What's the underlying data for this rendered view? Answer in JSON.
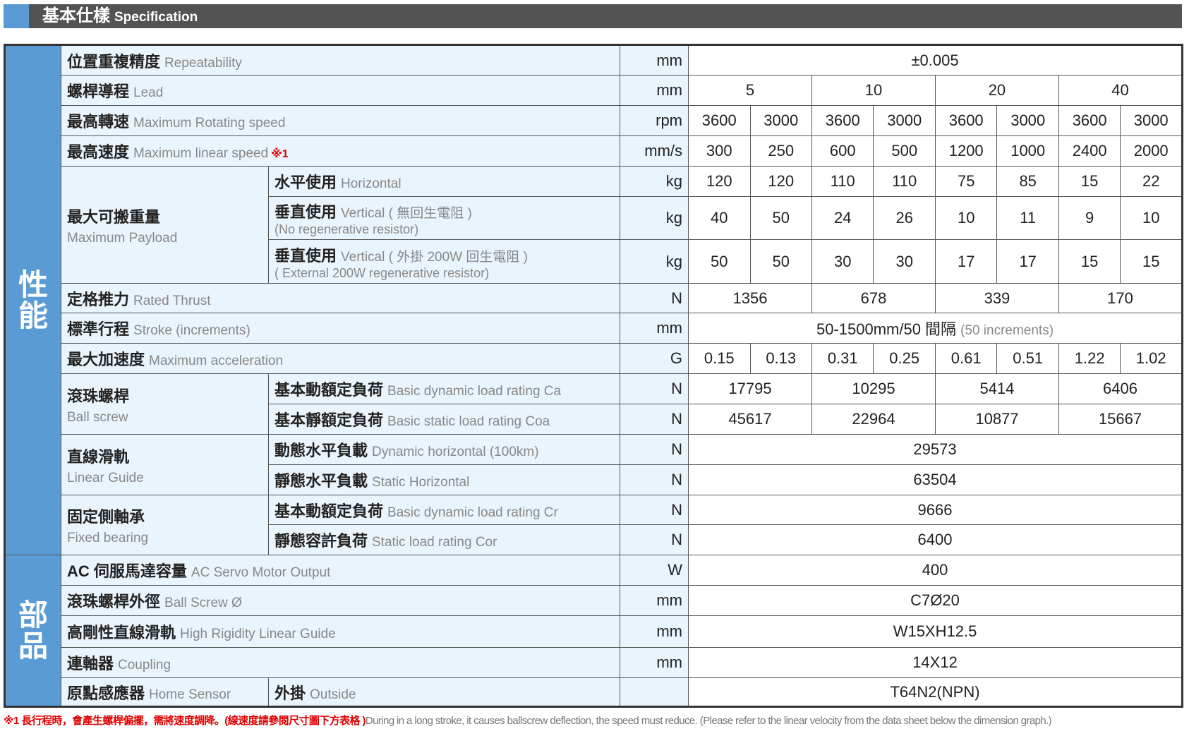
{
  "header": {
    "title_zh": "基本仕樣",
    "title_en": "Specification"
  },
  "colors": {
    "section_blue": "#5b9bd5",
    "label_bg": "#eaf4fc",
    "header_bg": "#545354",
    "note_red": "#e00000"
  },
  "sections": [
    {
      "label": "性能",
      "rows": 16
    },
    {
      "label": "部品",
      "rows": 5
    }
  ],
  "rows": [
    {
      "label_zh": "位置重複精度",
      "label_en": "Repeatability",
      "unit": "mm",
      "values": [
        {
          "v": "±0.005",
          "span": 8
        }
      ]
    },
    {
      "label_zh": "螺桿導程",
      "label_en": "Lead",
      "unit": "mm",
      "values": [
        {
          "v": "5",
          "span": 2
        },
        {
          "v": "10",
          "span": 2
        },
        {
          "v": "20",
          "span": 2
        },
        {
          "v": "40",
          "span": 2
        }
      ]
    },
    {
      "label_zh": "最高轉速",
      "label_en": "Maximum Rotating speed",
      "unit": "rpm",
      "values": [
        {
          "v": "3600"
        },
        {
          "v": "3000"
        },
        {
          "v": "3600"
        },
        {
          "v": "3000"
        },
        {
          "v": "3600"
        },
        {
          "v": "3000"
        },
        {
          "v": "3600"
        },
        {
          "v": "3000"
        }
      ]
    },
    {
      "label_zh": "最高速度",
      "label_en": "Maximum linear speed",
      "note": "※1",
      "unit": "mm/s",
      "values": [
        {
          "v": "300"
        },
        {
          "v": "250"
        },
        {
          "v": "600"
        },
        {
          "v": "500"
        },
        {
          "v": "1200"
        },
        {
          "v": "1000"
        },
        {
          "v": "2400"
        },
        {
          "v": "2000"
        }
      ]
    },
    {
      "label_zh": "最大可搬重量",
      "label_en": "Maximum Payload",
      "rowspan": 3,
      "sub_zh": "水平使用",
      "sub_en": "Horizontal",
      "unit": "kg",
      "values": [
        {
          "v": "120"
        },
        {
          "v": "120"
        },
        {
          "v": "110"
        },
        {
          "v": "110"
        },
        {
          "v": "75"
        },
        {
          "v": "85"
        },
        {
          "v": "15"
        },
        {
          "v": "22"
        }
      ]
    },
    {
      "sub_zh": "垂直使用",
      "sub_en": "Vertical ( 無回生電阻 )",
      "sub_en2": "(No regenerative resistor)",
      "unit": "kg",
      "values": [
        {
          "v": "40"
        },
        {
          "v": "50"
        },
        {
          "v": "24"
        },
        {
          "v": "26"
        },
        {
          "v": "10"
        },
        {
          "v": "11"
        },
        {
          "v": "9"
        },
        {
          "v": "10"
        }
      ]
    },
    {
      "sub_zh": "垂直使用",
      "sub_en": "Vertical ( 外掛 200W 回生電阻 )",
      "sub_en2": "( External 200W regenerative resistor)",
      "unit": "kg",
      "values": [
        {
          "v": "50"
        },
        {
          "v": "50"
        },
        {
          "v": "30"
        },
        {
          "v": "30"
        },
        {
          "v": "17"
        },
        {
          "v": "17"
        },
        {
          "v": "15"
        },
        {
          "v": "15"
        }
      ]
    },
    {
      "label_zh": "定格推力",
      "label_en": "Rated Thrust",
      "unit": "N",
      "values": [
        {
          "v": "1356",
          "span": 2
        },
        {
          "v": "678",
          "span": 2
        },
        {
          "v": "339",
          "span": 2
        },
        {
          "v": "170",
          "span": 2
        }
      ]
    },
    {
      "label_zh": "標準行程",
      "label_en": "Stroke (increments)",
      "unit": "mm",
      "values": [
        {
          "v": "50-1500mm/50 間隔",
          "extra": "(50 increments)",
          "span": 8
        }
      ]
    },
    {
      "label_zh": "最大加速度",
      "label_en": "Maximum acceleration",
      "unit": "G",
      "values": [
        {
          "v": "0.15"
        },
        {
          "v": "0.13"
        },
        {
          "v": "0.31"
        },
        {
          "v": "0.25"
        },
        {
          "v": "0.61"
        },
        {
          "v": "0.51"
        },
        {
          "v": "1.22"
        },
        {
          "v": "1.02"
        }
      ]
    },
    {
      "label_zh": "滾珠螺桿",
      "label_en": "Ball screw",
      "rowspan": 2,
      "sub_zh": "基本動額定負荷",
      "sub_en": "Basic dynamic load rating Ca",
      "unit": "N",
      "values": [
        {
          "v": "17795",
          "span": 2
        },
        {
          "v": "10295",
          "span": 2
        },
        {
          "v": "5414",
          "span": 2
        },
        {
          "v": "6406",
          "span": 2
        }
      ]
    },
    {
      "sub_zh": "基本靜額定負荷",
      "sub_en": "Basic static load rating Coa",
      "unit": "N",
      "values": [
        {
          "v": "45617",
          "span": 2
        },
        {
          "v": "22964",
          "span": 2
        },
        {
          "v": "10877",
          "span": 2
        },
        {
          "v": "15667",
          "span": 2
        }
      ]
    },
    {
      "label_zh": "直線滑軌",
      "label_en": "Linear Guide",
      "rowspan": 2,
      "sub_zh": "動態水平負載",
      "sub_en": "Dynamic horizontal (100km)",
      "unit": "N",
      "values": [
        {
          "v": "29573",
          "span": 8
        }
      ]
    },
    {
      "sub_zh": "靜態水平負載",
      "sub_en": "Static Horizontal",
      "unit": "N",
      "values": [
        {
          "v": "63504",
          "span": 8
        }
      ]
    },
    {
      "label_zh": "固定側軸承",
      "label_en": "Fixed bearing",
      "rowspan": 2,
      "sub_zh": "基本動額定負荷",
      "sub_en": "Basic dynamic load rating Cr",
      "unit": "N",
      "values": [
        {
          "v": "9666",
          "span": 8
        }
      ]
    },
    {
      "sub_zh": "靜態容許負荷",
      "sub_en": "Static load rating Cor",
      "unit": "N",
      "values": [
        {
          "v": "6400",
          "span": 8
        }
      ]
    },
    {
      "label_zh": "AC 伺服馬達容量",
      "label_en": "AC Servo Motor Output",
      "unit": "W",
      "values": [
        {
          "v": "400",
          "span": 8
        }
      ]
    },
    {
      "label_zh": "滾珠螺桿外徑",
      "label_en": "Ball Screw Ø",
      "unit": "mm",
      "values": [
        {
          "v": "C7Ø20",
          "span": 8
        }
      ]
    },
    {
      "label_zh": "高剛性直線滑軌",
      "label_en": "High Rigidity Linear Guide",
      "unit": "mm",
      "values": [
        {
          "v": "W15XH12.5",
          "span": 8
        }
      ]
    },
    {
      "label_zh": "連軸器",
      "label_en": "Coupling",
      "unit": "mm",
      "values": [
        {
          "v": "14X12",
          "span": 8
        }
      ]
    },
    {
      "label_zh": "原點感應器",
      "label_en": "Home Sensor",
      "rowspan": 1,
      "sub_zh": "外掛",
      "sub_en": "Outside",
      "unit": "",
      "values": [
        {
          "v": "T64N2(NPN)",
          "span": 8
        }
      ]
    }
  ],
  "footnote": {
    "zh": "※1 長行程時，會產生螺桿偏擺，需將速度調降。(線速度請參閱尺寸圖下方表格 )",
    "en": "During in a long stroke, it causes ballscrew deflection, the speed must reduce. (Please refer to the linear velocity from the data sheet below the dimension graph.)"
  }
}
